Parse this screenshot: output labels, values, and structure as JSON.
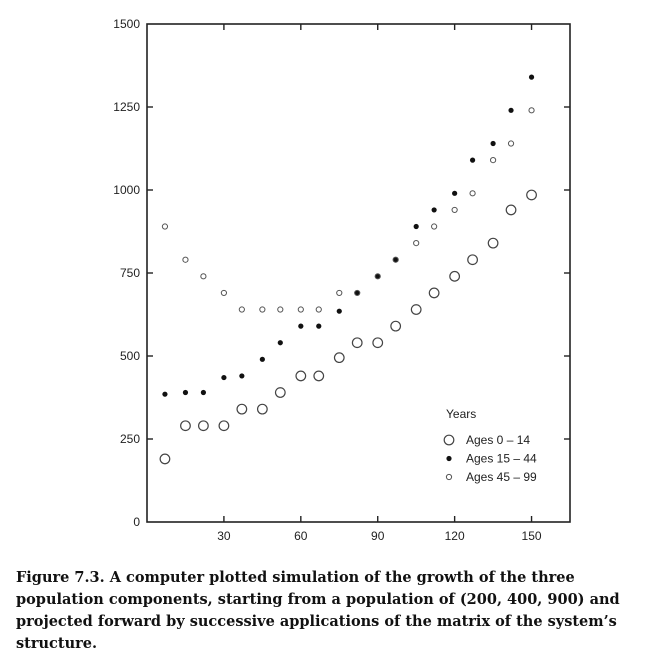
{
  "chart_data": {
    "type": "scatter",
    "title": "",
    "xlabel": "",
    "ylabel": "",
    "xlim": [
      0,
      165
    ],
    "ylim": [
      0,
      1500
    ],
    "xticks": [
      30,
      60,
      90,
      120,
      150
    ],
    "yticks": [
      0,
      250,
      500,
      750,
      1000,
      1250,
      1500
    ],
    "legend": {
      "title": "Years",
      "placement": "bottom-right"
    },
    "series": [
      {
        "name": "Ages  0 – 14",
        "marker": "large-open-circle",
        "x": [
          7,
          15,
          22,
          30,
          37,
          45,
          52,
          60,
          67,
          75,
          82,
          90,
          97,
          105,
          112,
          120,
          127,
          135,
          142,
          150
        ],
        "y": [
          190,
          290,
          290,
          290,
          340,
          340,
          390,
          440,
          440,
          495,
          540,
          540,
          590,
          640,
          690,
          740,
          790,
          840,
          940,
          985
        ]
      },
      {
        "name": "Ages 15 – 44",
        "marker": "dot",
        "x": [
          7,
          15,
          22,
          30,
          37,
          45,
          52,
          60,
          67,
          75,
          82,
          90,
          97,
          105,
          112,
          120,
          127,
          135,
          142,
          150
        ],
        "y": [
          385,
          390,
          390,
          435,
          440,
          490,
          540,
          590,
          590,
          635,
          690,
          740,
          790,
          890,
          940,
          990,
          1090,
          1140,
          1240,
          1340
        ]
      },
      {
        "name": "Ages 45 – 99",
        "marker": "small-open-circle",
        "x": [
          7,
          15,
          22,
          30,
          37,
          45,
          52,
          60,
          67,
          75,
          82,
          90,
          97,
          105,
          112,
          120,
          127,
          135,
          142,
          150
        ],
        "y": [
          890,
          790,
          740,
          690,
          640,
          640,
          640,
          640,
          640,
          690,
          690,
          740,
          790,
          840,
          890,
          940,
          990,
          1090,
          1140,
          1240
        ]
      }
    ]
  },
  "caption": "Figure 7.3. A computer plotted simulation of the growth of the three population components, starting from a population of (200, 400, 900) and projected forward by successive applications of the matrix of the system’s structure."
}
